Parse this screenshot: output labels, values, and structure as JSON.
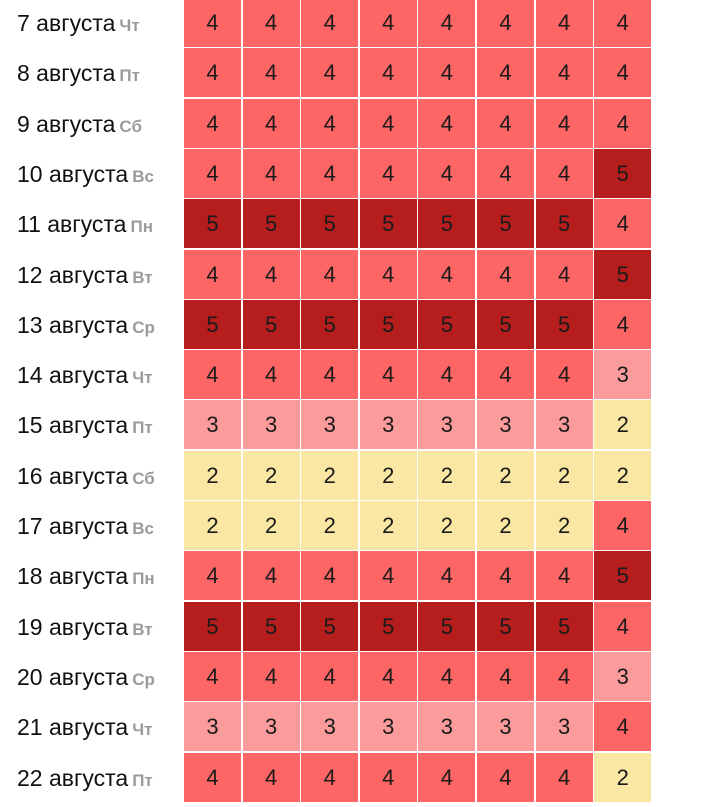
{
  "chart_data": {
    "type": "heatmap",
    "colors": {
      "2": "#fbe7a4",
      "3": "#fb9b9b",
      "4": "#fe6565",
      "5": "#b61e1e"
    },
    "rows": [
      {
        "date": "7 августа",
        "weekday": "Чт",
        "values": [
          4,
          4,
          4,
          4,
          4,
          4,
          4,
          4
        ]
      },
      {
        "date": "8 августа",
        "weekday": "Пт",
        "values": [
          4,
          4,
          4,
          4,
          4,
          4,
          4,
          4
        ]
      },
      {
        "date": "9 августа",
        "weekday": "Сб",
        "values": [
          4,
          4,
          4,
          4,
          4,
          4,
          4,
          4
        ]
      },
      {
        "date": "10 августа",
        "weekday": "Вс",
        "values": [
          4,
          4,
          4,
          4,
          4,
          4,
          4,
          5
        ]
      },
      {
        "date": "11 августа",
        "weekday": "Пн",
        "values": [
          5,
          5,
          5,
          5,
          5,
          5,
          5,
          4
        ]
      },
      {
        "date": "12 августа",
        "weekday": "Вт",
        "values": [
          4,
          4,
          4,
          4,
          4,
          4,
          4,
          5
        ]
      },
      {
        "date": "13 августа",
        "weekday": "Ср",
        "values": [
          5,
          5,
          5,
          5,
          5,
          5,
          5,
          4
        ]
      },
      {
        "date": "14 августа",
        "weekday": "Чт",
        "values": [
          4,
          4,
          4,
          4,
          4,
          4,
          4,
          3
        ]
      },
      {
        "date": "15 августа",
        "weekday": "Пт",
        "values": [
          3,
          3,
          3,
          3,
          3,
          3,
          3,
          2
        ]
      },
      {
        "date": "16 августа",
        "weekday": "Сб",
        "values": [
          2,
          2,
          2,
          2,
          2,
          2,
          2,
          2
        ]
      },
      {
        "date": "17 августа",
        "weekday": "Вс",
        "values": [
          2,
          2,
          2,
          2,
          2,
          2,
          2,
          4
        ]
      },
      {
        "date": "18 августа",
        "weekday": "Пн",
        "values": [
          4,
          4,
          4,
          4,
          4,
          4,
          4,
          5
        ]
      },
      {
        "date": "19 августа",
        "weekday": "Вт",
        "values": [
          5,
          5,
          5,
          5,
          5,
          5,
          5,
          4
        ]
      },
      {
        "date": "20 августа",
        "weekday": "Ср",
        "values": [
          4,
          4,
          4,
          4,
          4,
          4,
          4,
          3
        ]
      },
      {
        "date": "21 августа",
        "weekday": "Чт",
        "values": [
          3,
          3,
          3,
          3,
          3,
          3,
          3,
          4
        ]
      },
      {
        "date": "22 августа",
        "weekday": "Пт",
        "values": [
          4,
          4,
          4,
          4,
          4,
          4,
          4,
          2
        ]
      }
    ]
  }
}
